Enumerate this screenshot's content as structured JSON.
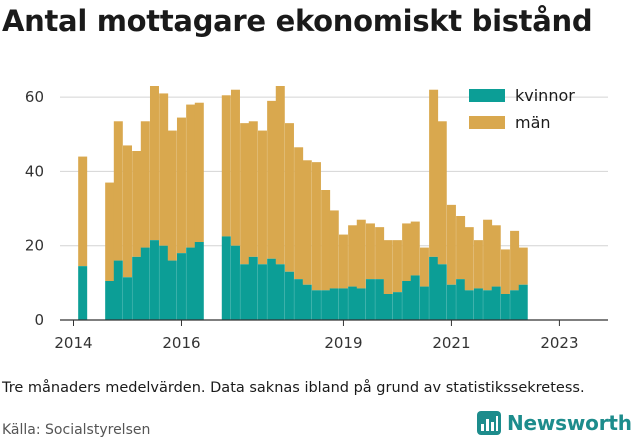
{
  "title": "Antal mottagare ekonomiskt bistånd",
  "note": "Tre månaders medelvärden. Data saknas ibland på grund av statistikssekretess.",
  "source": "Källa: Socialstyrelsen",
  "brand": {
    "name": "Newsworthy",
    "icon": "newsworthy-logo-icon"
  },
  "colors": {
    "kvinnor": "#0c9e96",
    "man": "#d9a84e",
    "grid": "#d4d4d4",
    "axis": "#333333"
  },
  "chart_data": {
    "type": "bar",
    "stacked": true,
    "title": "",
    "xlabel": "",
    "ylabel": "",
    "ylim": [
      0,
      63
    ],
    "yticks": [
      0,
      20,
      40,
      60
    ],
    "xticks": [
      {
        "label": "2014",
        "x": 2014.0
      },
      {
        "label": "2016",
        "x": 2016.0
      },
      {
        "label": "2019",
        "x": 2019.0
      },
      {
        "label": "2021",
        "x": 2021.0
      },
      {
        "label": "2023",
        "x": 2023.0
      }
    ],
    "xlim": [
      2013.75,
      2023.9
    ],
    "grid": true,
    "legend_position": "top-right",
    "x": [
      2014.17,
      2014.67,
      2014.83,
      2015.0,
      2015.17,
      2015.33,
      2015.5,
      2015.67,
      2015.83,
      2016.0,
      2016.17,
      2016.33,
      2016.83,
      2017.0,
      2017.17,
      2017.33,
      2017.5,
      2017.67,
      2017.83,
      2018.0,
      2018.17,
      2018.33,
      2018.5,
      2018.67,
      2018.83,
      2019.0,
      2019.17,
      2019.33,
      2019.5,
      2019.67,
      2019.83,
      2020.0,
      2020.17,
      2020.33,
      2020.5,
      2020.67,
      2020.83,
      2021.0,
      2021.17,
      2021.33,
      2021.5,
      2021.67,
      2021.83,
      2022.0,
      2022.17,
      2022.33
    ],
    "series": [
      {
        "name": "kvinnor",
        "values": [
          14.5,
          10.5,
          16.0,
          11.5,
          17.0,
          19.5,
          21.5,
          20.0,
          16.0,
          18.0,
          19.5,
          21.0,
          22.5,
          20.0,
          15.0,
          17.0,
          15.0,
          16.5,
          15.0,
          13.0,
          11.0,
          9.5,
          8.0,
          8.0,
          8.5,
          8.5,
          9.0,
          8.5,
          11.0,
          11.0,
          7.0,
          7.5,
          10.5,
          12.0,
          9.0,
          17.0,
          15.0,
          9.5,
          11.0,
          8.0,
          8.5,
          8.0,
          9.0,
          7.0,
          8.0,
          9.5
        ]
      },
      {
        "name": "män",
        "values": [
          29.5,
          26.5,
          37.5,
          35.5,
          28.5,
          34.0,
          41.5,
          41.0,
          35.0,
          36.5,
          38.5,
          37.5,
          38.0,
          42.0,
          38.0,
          36.5,
          36.0,
          42.5,
          48.0,
          40.0,
          35.5,
          33.5,
          34.5,
          27.0,
          21.0,
          14.5,
          16.5,
          18.5,
          15.0,
          14.0,
          14.5,
          14.0,
          15.5,
          14.5,
          10.5,
          45.0,
          38.5,
          21.5,
          17.0,
          17.0,
          13.0,
          19.0,
          16.5,
          12.0,
          16.0,
          10.0
        ]
      }
    ]
  },
  "legend": [
    {
      "label": "kvinnor",
      "color": "#0c9e96"
    },
    {
      "label": "män",
      "color": "#d9a84e"
    }
  ]
}
